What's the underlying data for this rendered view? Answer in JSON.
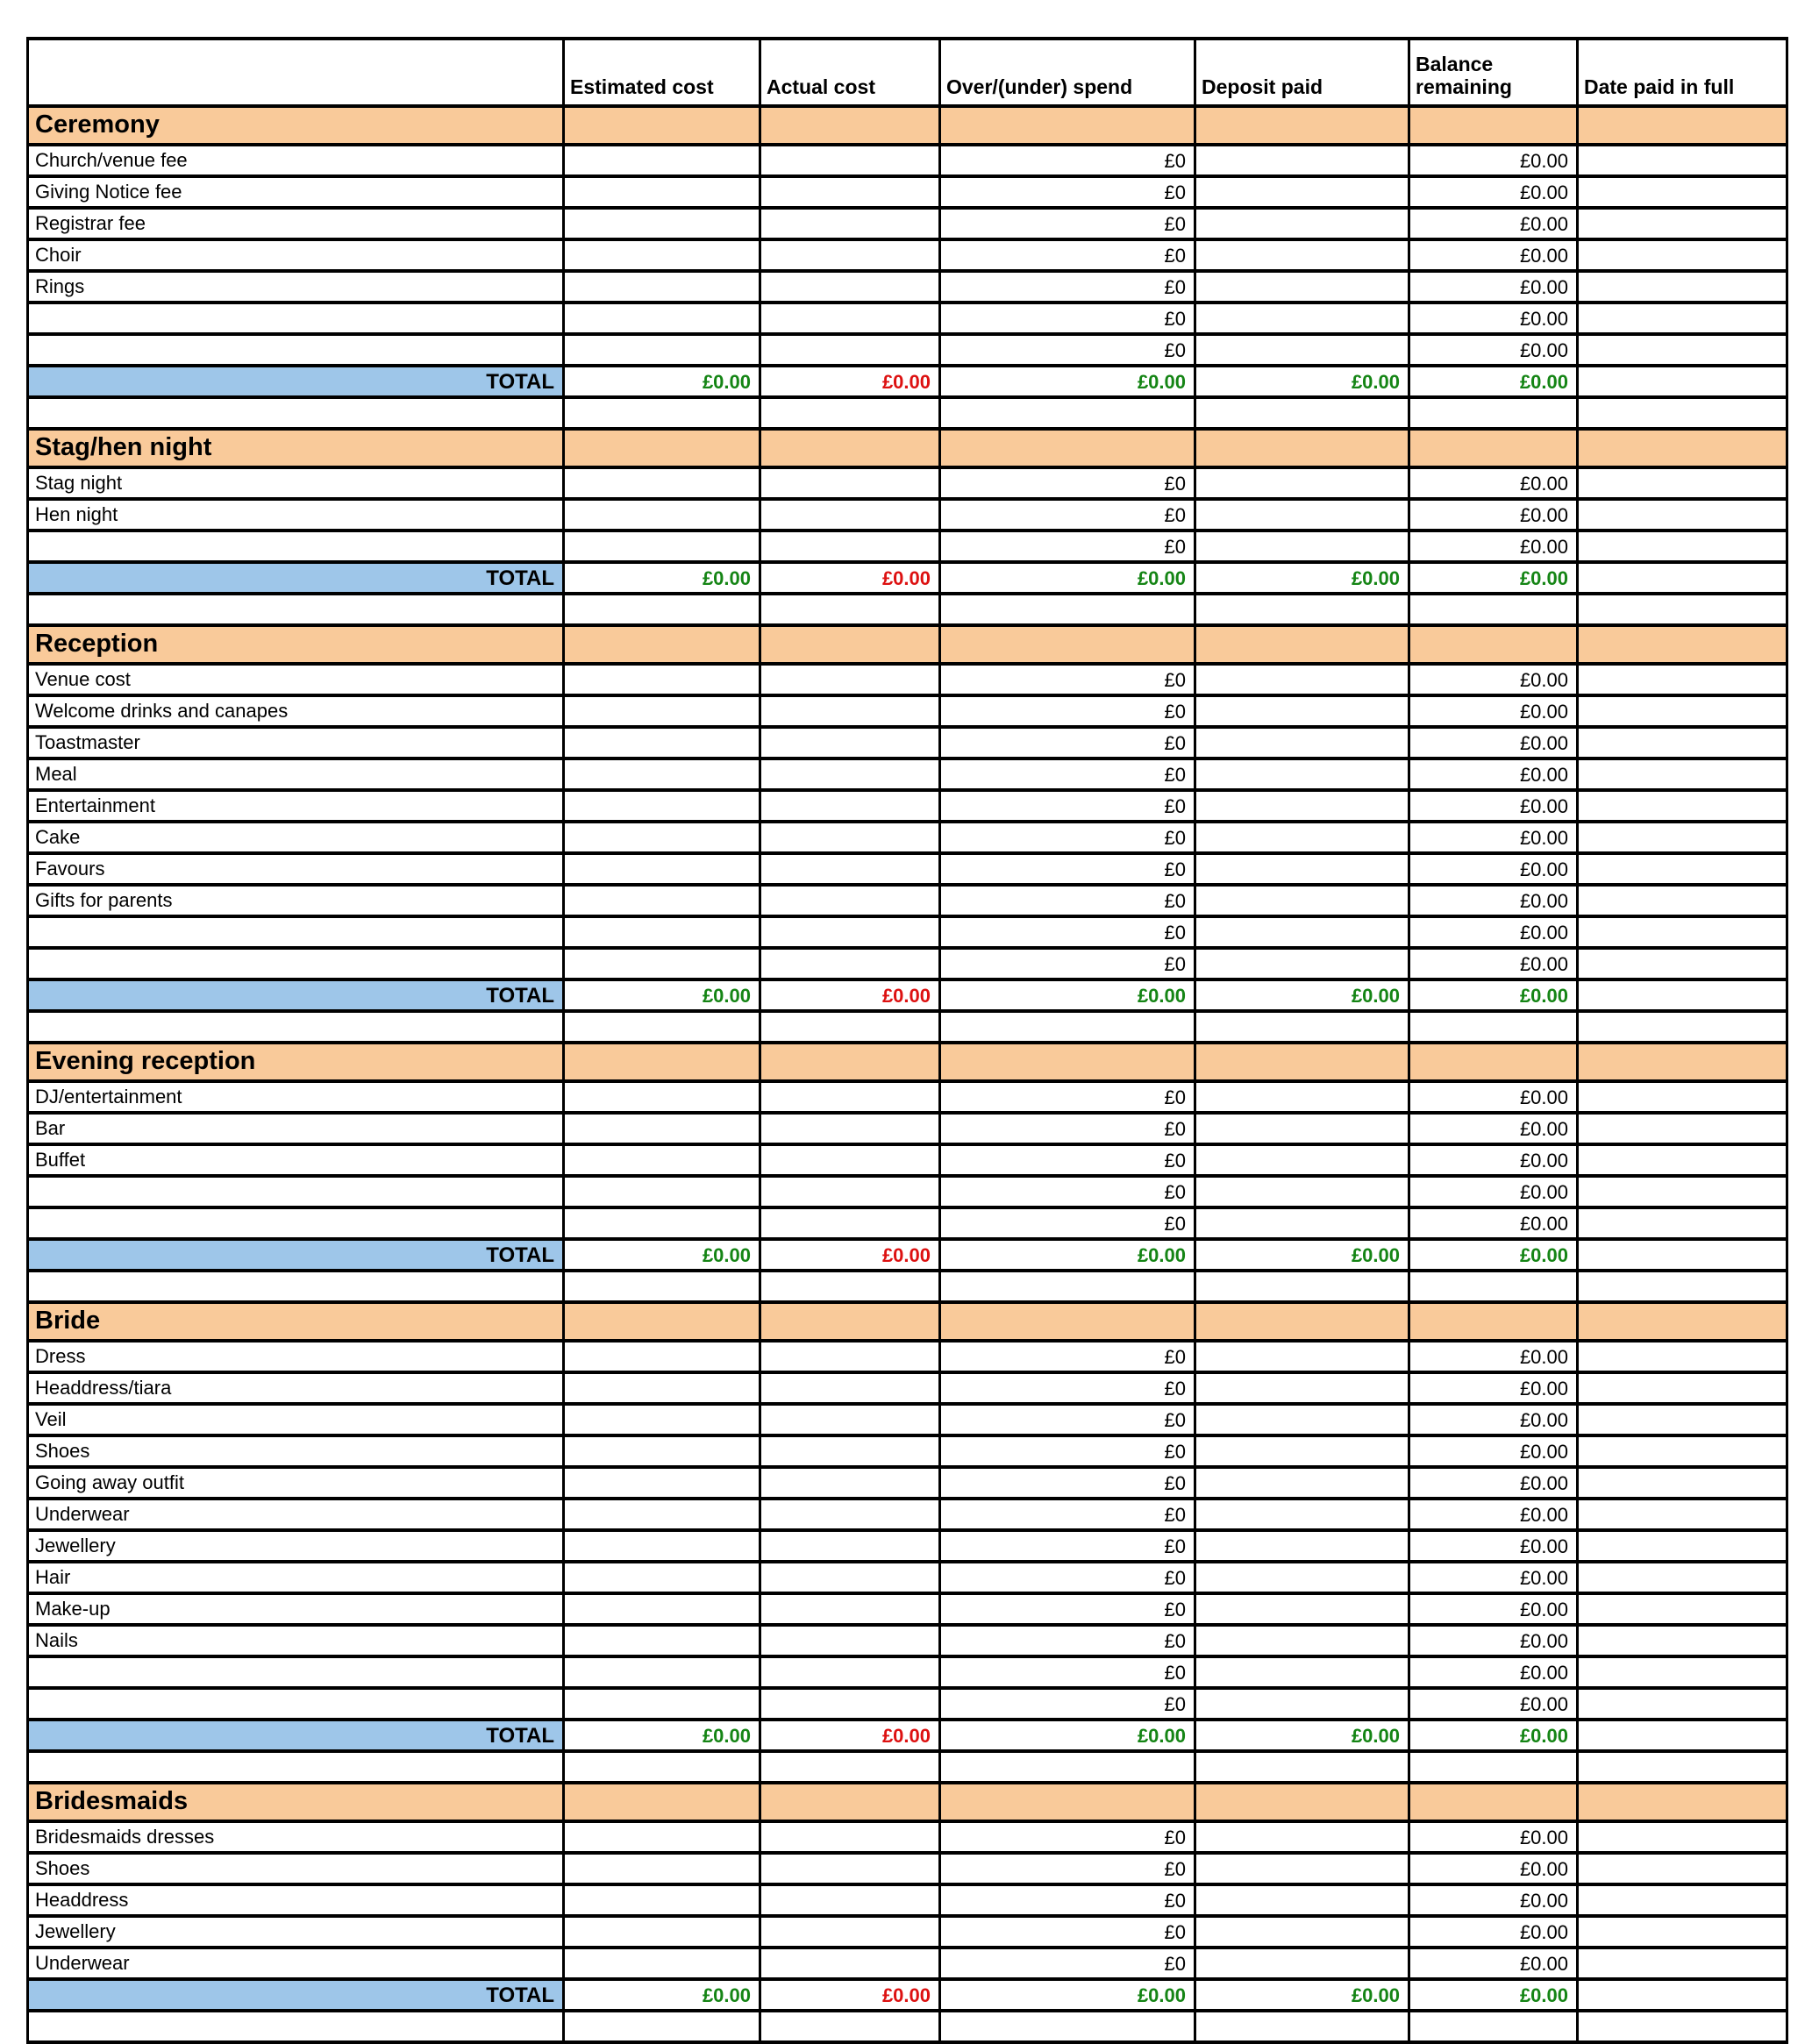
{
  "table": {
    "header": {
      "item": "",
      "estimated": "Estimated cost",
      "actual": "Actual cost",
      "over_under": "Over/(under) spend",
      "deposit": "Deposit paid",
      "balance": "Balance remaining",
      "date_paid": "Date paid in full"
    },
    "placeholders": {
      "over_under": "£0",
      "balance": "£0.00"
    },
    "total_label": "TOTAL",
    "totals": {
      "estimated": "£0.00",
      "actual": "£0.00",
      "over_under": "£0.00",
      "deposit": "£0.00",
      "balance": "£0.00",
      "date_paid": ""
    },
    "sections": [
      {
        "name": "Ceremony",
        "items": [
          "Church/venue fee",
          "Giving Notice fee",
          "Registrar fee",
          "Choir",
          "Rings",
          "",
          ""
        ]
      },
      {
        "name": "Stag/hen night",
        "items": [
          "Stag night",
          "Hen night",
          ""
        ]
      },
      {
        "name": "Reception",
        "items": [
          "Venue cost",
          "Welcome drinks and canapes",
          "Toastmaster",
          "Meal",
          "Entertainment",
          "Cake",
          "Favours",
          "Gifts for parents",
          "",
          ""
        ]
      },
      {
        "name": "Evening reception",
        "items": [
          "DJ/entertainment",
          "Bar",
          "Buffet",
          "",
          ""
        ]
      },
      {
        "name": "Bride",
        "items": [
          "Dress",
          "Headdress/tiara",
          "Veil",
          "Shoes",
          "Going away outfit",
          "Underwear",
          "Jewellery",
          "Hair",
          "Make-up",
          "Nails",
          "",
          ""
        ]
      },
      {
        "name": "Bridesmaids",
        "items": [
          "Bridesmaids dresses",
          "Shoes",
          "Headdress",
          "Jewellery",
          "Underwear"
        ]
      }
    ],
    "colors": {
      "section_bg": "#f9ca9a",
      "total_bg": "#9ec6e9",
      "positive_text": "#158515",
      "negative_text": "#dd1111",
      "grid": "#000000"
    }
  }
}
